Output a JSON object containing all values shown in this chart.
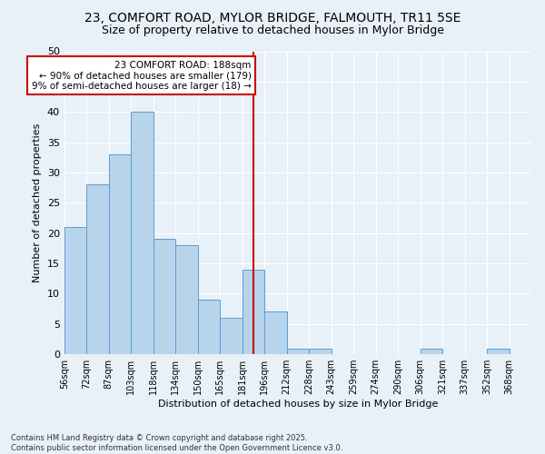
{
  "title1": "23, COMFORT ROAD, MYLOR BRIDGE, FALMOUTH, TR11 5SE",
  "title2": "Size of property relative to detached houses in Mylor Bridge",
  "xlabel": "Distribution of detached houses by size in Mylor Bridge",
  "ylabel": "Number of detached properties",
  "bar_labels": [
    "56sqm",
    "72sqm",
    "87sqm",
    "103sqm",
    "118sqm",
    "134sqm",
    "150sqm",
    "165sqm",
    "181sqm",
    "196sqm",
    "212sqm",
    "228sqm",
    "243sqm",
    "259sqm",
    "274sqm",
    "290sqm",
    "306sqm",
    "321sqm",
    "337sqm",
    "352sqm",
    "368sqm"
  ],
  "bar_values": [
    21,
    28,
    33,
    40,
    19,
    18,
    9,
    6,
    14,
    7,
    1,
    1,
    0,
    0,
    0,
    0,
    1,
    0,
    0,
    1,
    0
  ],
  "bar_color": "#b8d4ea",
  "bar_edge_color": "#5b9bd5",
  "ref_line_index": 8.5,
  "ref_line_color": "#cc0000",
  "annotation_text": "23 COMFORT ROAD: 188sqm\n← 90% of detached houses are smaller (179)\n9% of semi-detached houses are larger (18) →",
  "annotation_box_color": "#cc0000",
  "ylim": [
    0,
    50
  ],
  "yticks": [
    0,
    5,
    10,
    15,
    20,
    25,
    30,
    35,
    40,
    45,
    50
  ],
  "background_color": "#e8f0f8",
  "grid_color": "#ffffff",
  "footer_text": "Contains HM Land Registry data © Crown copyright and database right 2025.\nContains public sector information licensed under the Open Government Licence v3.0.",
  "title_fontsize": 10,
  "subtitle_fontsize": 9
}
